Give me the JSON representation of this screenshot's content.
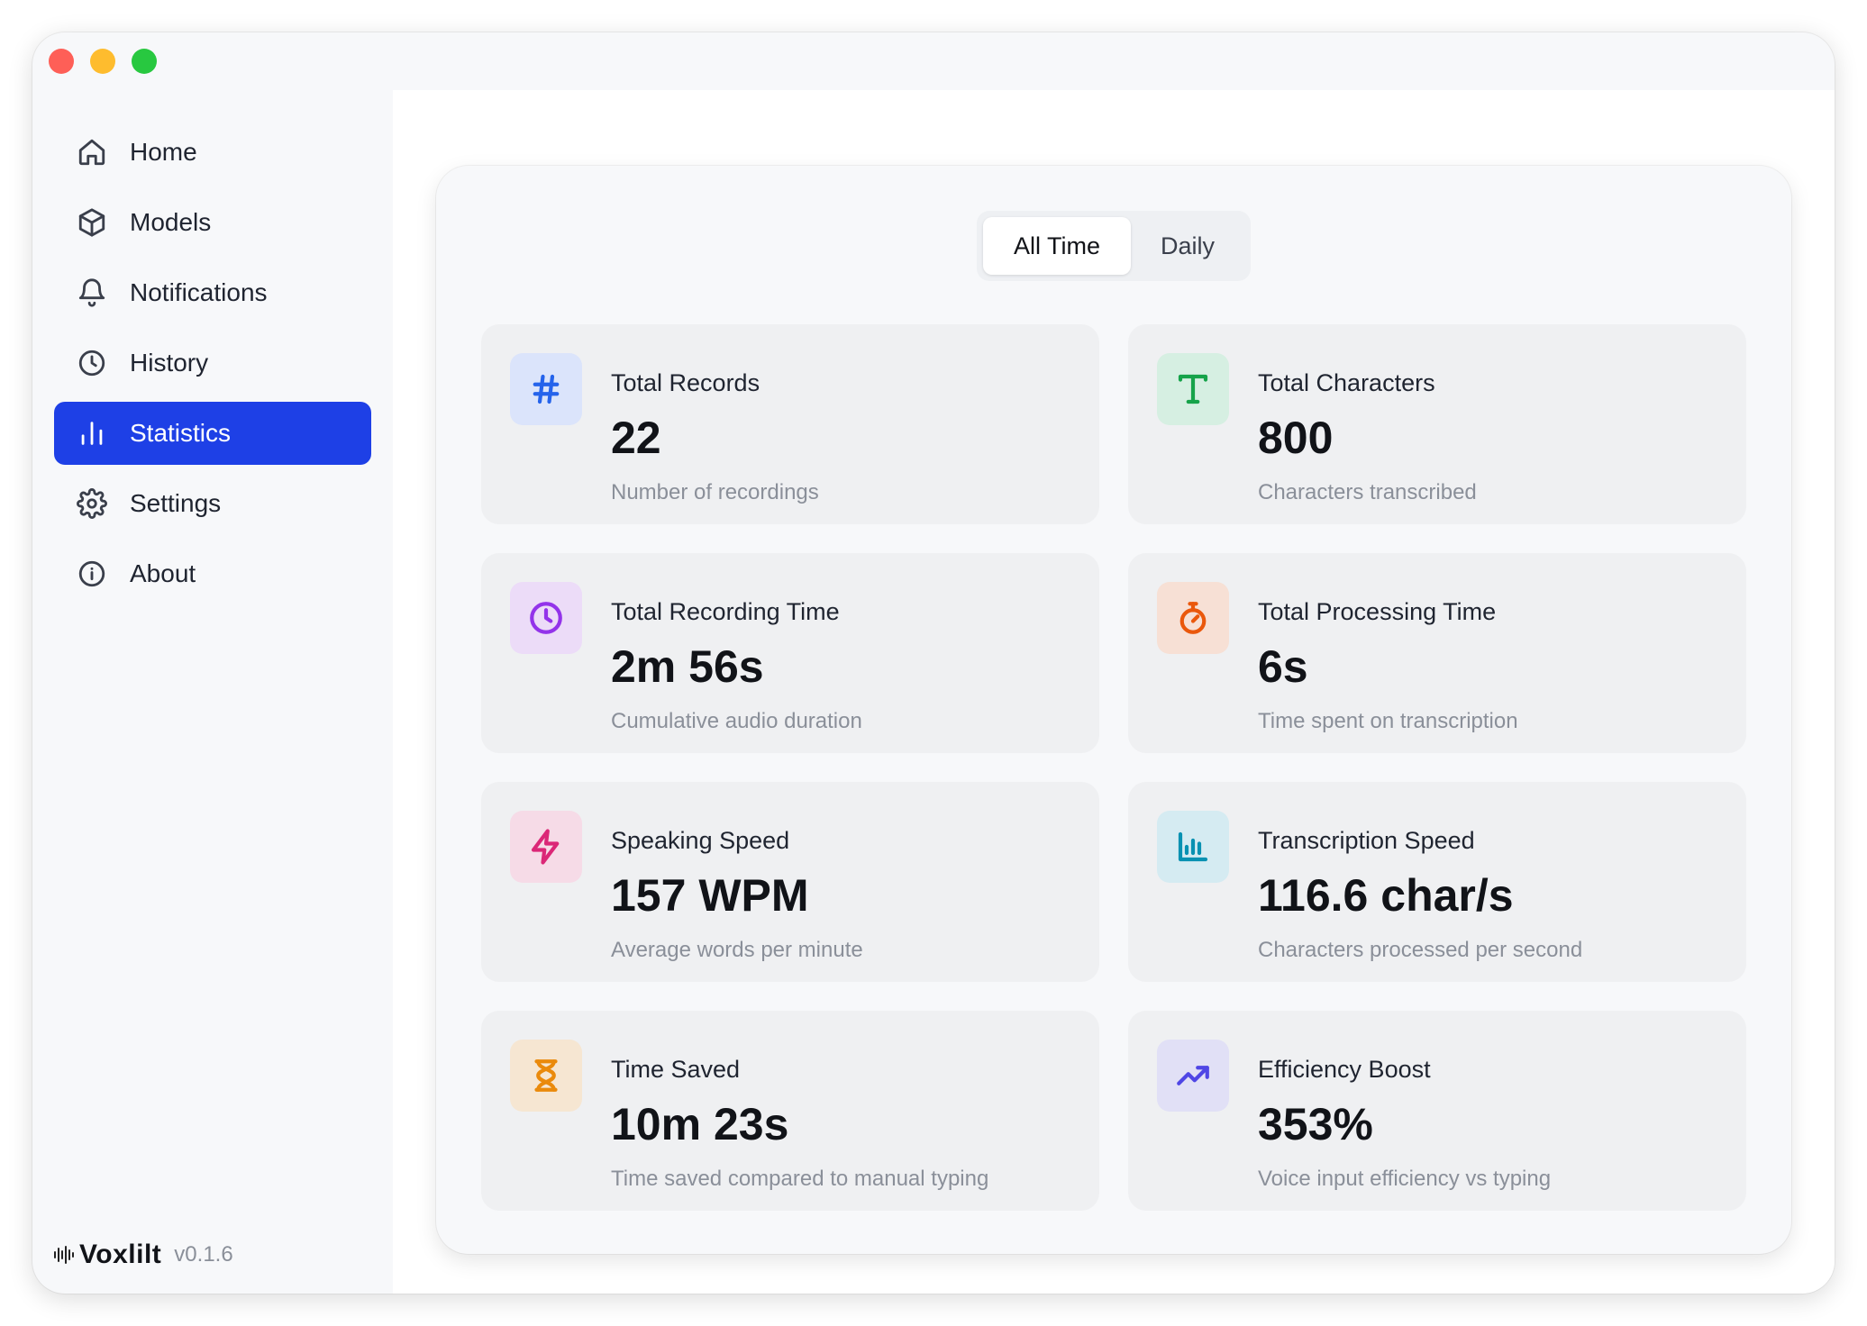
{
  "sidebar": {
    "items": [
      {
        "label": "Home",
        "icon": "home-icon"
      },
      {
        "label": "Models",
        "icon": "cube-icon"
      },
      {
        "label": "Notifications",
        "icon": "bell-icon"
      },
      {
        "label": "History",
        "icon": "clock-icon"
      },
      {
        "label": "Statistics",
        "icon": "bar-chart-icon",
        "active": true
      },
      {
        "label": "Settings",
        "icon": "gear-icon"
      },
      {
        "label": "About",
        "icon": "info-icon"
      }
    ],
    "brand": {
      "name": "Voxlilt",
      "version": "v0.1.6"
    }
  },
  "tabs": [
    {
      "label": "All Time",
      "active": true
    },
    {
      "label": "Daily",
      "active": false
    }
  ],
  "cards": [
    {
      "label": "Total Records",
      "value": "22",
      "desc": "Number of recordings",
      "icon": "hash-icon",
      "color": "#2563eb",
      "bg": "#dbe4fb"
    },
    {
      "label": "Total Characters",
      "value": "800",
      "desc": "Characters transcribed",
      "icon": "text-t-icon",
      "color": "#16a34a",
      "bg": "#d6efe2"
    },
    {
      "label": "Total Recording Time",
      "value": "2m 56s",
      "desc": "Cumulative audio duration",
      "icon": "clock-icon",
      "color": "#9333ea",
      "bg": "#ecdcf8"
    },
    {
      "label": "Total Processing Time",
      "value": "6s",
      "desc": "Time spent on transcription",
      "icon": "stopwatch-icon",
      "color": "#ea580c",
      "bg": "#f7e0d5"
    },
    {
      "label": "Speaking Speed",
      "value": "157 WPM",
      "desc": "Average words per minute",
      "icon": "lightning-icon",
      "color": "#db2777",
      "bg": "#f6dbe7"
    },
    {
      "label": "Transcription Speed",
      "value": "116.6 char/s",
      "desc": "Characters processed per second",
      "icon": "bar-chart-icon",
      "color": "#0891b2",
      "bg": "#d5ebf2"
    },
    {
      "label": "Time Saved",
      "value": "10m 23s",
      "desc": "Time saved compared to manual typing",
      "icon": "hourglass-icon",
      "color": "#ea8a0c",
      "bg": "#f6e6d2"
    },
    {
      "label": "Efficiency Boost",
      "value": "353%",
      "desc": "Voice input efficiency vs typing",
      "icon": "trending-up-icon",
      "color": "#4f46e5",
      "bg": "#e1e0f6"
    }
  ]
}
